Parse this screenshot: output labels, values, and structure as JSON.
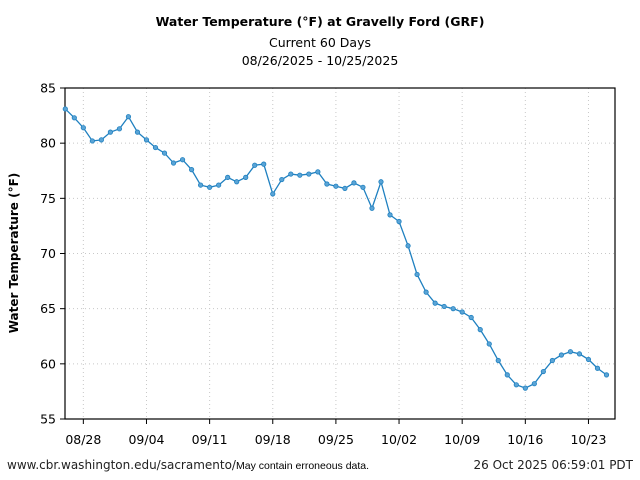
{
  "chart_data": {
    "type": "line",
    "title": "Water Temperature (°F) at Gravelly Ford (GRF)",
    "subtitle": "Current 60 Days",
    "date_range": "08/26/2025 - 10/25/2025",
    "xlabel": "",
    "ylabel": "Water Temperature (°F)",
    "ylim": [
      55,
      85
    ],
    "yticks": [
      55,
      60,
      65,
      70,
      75,
      80,
      85
    ],
    "xlim_day_index": [
      0,
      61
    ],
    "xticks": [
      {
        "label": "08/28",
        "day": 2
      },
      {
        "label": "09/04",
        "day": 9
      },
      {
        "label": "09/11",
        "day": 16
      },
      {
        "label": "09/18",
        "day": 23
      },
      {
        "label": "09/25",
        "day": 30
      },
      {
        "label": "10/02",
        "day": 37
      },
      {
        "label": "10/09",
        "day": 44
      },
      {
        "label": "10/16",
        "day": 51
      },
      {
        "label": "10/23",
        "day": 58
      }
    ],
    "grid": true,
    "series": [
      {
        "name": "Water Temperature",
        "color": "#1f80c0",
        "x": [
          "08/26",
          "08/27",
          "08/28",
          "08/29",
          "08/30",
          "08/31",
          "09/01",
          "09/02",
          "09/03",
          "09/04",
          "09/05",
          "09/06",
          "09/07",
          "09/08",
          "09/09",
          "09/10",
          "09/11",
          "09/12",
          "09/13",
          "09/14",
          "09/15",
          "09/16",
          "09/17",
          "09/18",
          "09/19",
          "09/20",
          "09/21",
          "09/22",
          "09/23",
          "09/24",
          "09/25",
          "09/26",
          "09/27",
          "09/28",
          "09/29",
          "09/30",
          "10/01",
          "10/02",
          "10/03",
          "10/04",
          "10/05",
          "10/06",
          "10/07",
          "10/08",
          "10/09",
          "10/10",
          "10/11",
          "10/12",
          "10/13",
          "10/14",
          "10/15",
          "10/16",
          "10/17",
          "10/18",
          "10/19",
          "10/20",
          "10/21",
          "10/22",
          "10/23",
          "10/24",
          "10/25"
        ],
        "values": [
          83.1,
          82.3,
          81.4,
          80.2,
          80.3,
          81.0,
          81.3,
          82.4,
          81.0,
          80.3,
          79.6,
          79.1,
          78.2,
          78.5,
          77.6,
          76.2,
          76.0,
          76.2,
          76.9,
          76.5,
          76.9,
          78.0,
          78.1,
          75.4,
          76.7,
          77.2,
          77.1,
          77.2,
          77.4,
          76.3,
          76.1,
          75.9,
          76.4,
          76.0,
          74.1,
          76.5,
          73.5,
          72.9,
          70.7,
          68.1,
          66.5,
          65.5,
          65.2,
          65.0,
          64.7,
          64.2,
          63.1,
          61.8,
          60.3,
          59.0,
          58.1,
          57.8,
          58.2,
          59.3,
          60.3,
          60.8,
          61.1,
          60.9,
          60.4,
          59.6,
          59.0
        ]
      }
    ]
  },
  "footer": {
    "url": "www.cbr.washington.edu/sacramento/",
    "note": "May contain erroneous data.",
    "timestamp": "26 Oct 2025 06:59:01 PDT"
  }
}
